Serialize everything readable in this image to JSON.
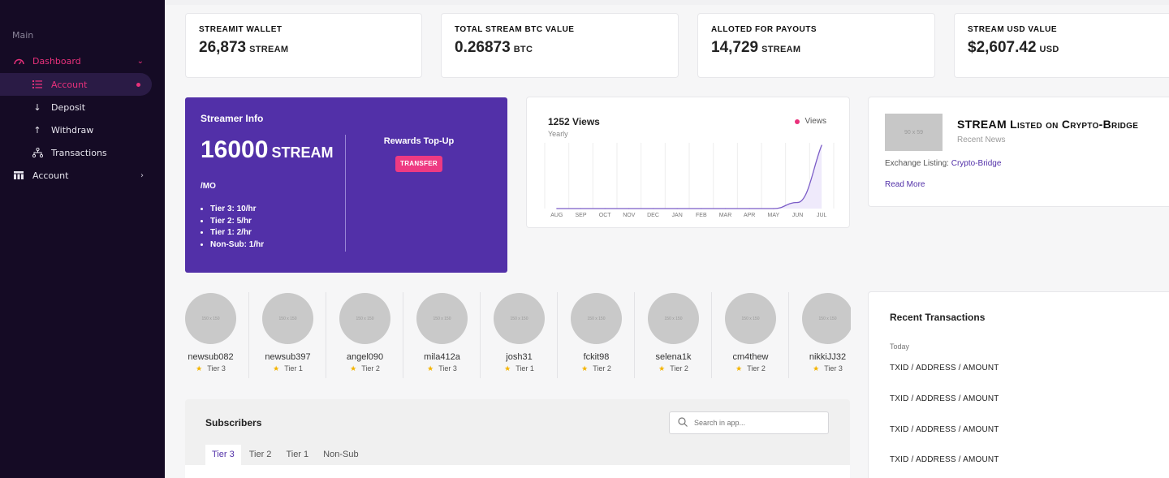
{
  "sidebar": {
    "section": "Main",
    "dashboard": "Dashboard",
    "items": [
      {
        "label": "Account"
      },
      {
        "label": "Deposit"
      },
      {
        "label": "Withdraw"
      },
      {
        "label": "Transactions"
      }
    ],
    "account": "Account"
  },
  "stats": [
    {
      "label": "STREAMIT WALLET",
      "value": "26,873",
      "unit": "STREAM"
    },
    {
      "label": "TOTAL STREAM BTC VALUE",
      "value": "0.26873",
      "unit": "BTC"
    },
    {
      "label": "ALLOTED FOR PAYOUTS",
      "value": "14,729",
      "unit": "STREAM"
    },
    {
      "label": "STREAM USD VALUE",
      "value": "$2,607.42",
      "unit": "USD"
    }
  ],
  "streamer": {
    "title": "Streamer Info",
    "amount": "16000",
    "unit": "STREAM",
    "per": "/MO",
    "tiers": [
      "Tier 3: 10/hr",
      "Tier 2: 5/hr",
      "Tier 1: 2/hr",
      "Non-Sub: 1/hr"
    ],
    "rewards_label": "Rewards Top-Up",
    "transfer_label": "TRANSFER"
  },
  "chart_data": {
    "type": "line",
    "title": "1252 Views",
    "subtitle": "Yearly",
    "categories": [
      "AUG",
      "SEP",
      "OCT",
      "NOV",
      "DEC",
      "JAN",
      "FEB",
      "MAR",
      "APR",
      "MAY",
      "JUN",
      "JUL"
    ],
    "series": [
      {
        "name": "Views",
        "values": [
          0,
          0,
          0,
          0,
          0,
          0,
          0,
          0,
          0,
          0,
          120,
          1252
        ]
      }
    ],
    "ylim": [
      0,
      1300
    ],
    "legend": "top-right",
    "grid": true,
    "colors": {
      "line": "#7b5cc7",
      "legend_dot": "#e9317b"
    }
  },
  "news": {
    "thumb_label": "90 x 59",
    "title": "STREAM Listed on Crypto-Bridge",
    "subtitle": "Recent News",
    "line_prefix": "Exchange Listing:",
    "link": "Crypto-Bridge",
    "more": "Read More"
  },
  "subscribers_row": [
    {
      "name": "newsub082",
      "tier": "Tier 3",
      "img": "150 x 150"
    },
    {
      "name": "newsub397",
      "tier": "Tier 1",
      "img": "150 x 150"
    },
    {
      "name": "angel090",
      "tier": "Tier 2",
      "img": "150 x 150"
    },
    {
      "name": "mila412a",
      "tier": "Tier 3",
      "img": "150 x 150"
    },
    {
      "name": "josh31",
      "tier": "Tier 1",
      "img": "150 x 150"
    },
    {
      "name": "fckit98",
      "tier": "Tier 2",
      "img": "150 x 150"
    },
    {
      "name": "selena1k",
      "tier": "Tier 2",
      "img": "150 x 150"
    },
    {
      "name": "cm4thew",
      "tier": "Tier 2",
      "img": "150 x 150"
    },
    {
      "name": "nikkiJJ32",
      "tier": "Tier 3",
      "img": "150 x 150"
    }
  ],
  "subscribers_panel": {
    "title": "Subscribers",
    "search_placeholder": "Search in app...",
    "tabs": [
      "Tier 3",
      "Tier 2",
      "Tier 1",
      "Non-Sub"
    ]
  },
  "recent": {
    "title": "Recent Transactions",
    "today": "Today",
    "rows": [
      "TXID / ADDRESS / AMOUNT",
      "TXID / ADDRESS / AMOUNT",
      "TXID / ADDRESS / AMOUNT",
      "TXID / ADDRESS / AMOUNT"
    ]
  }
}
